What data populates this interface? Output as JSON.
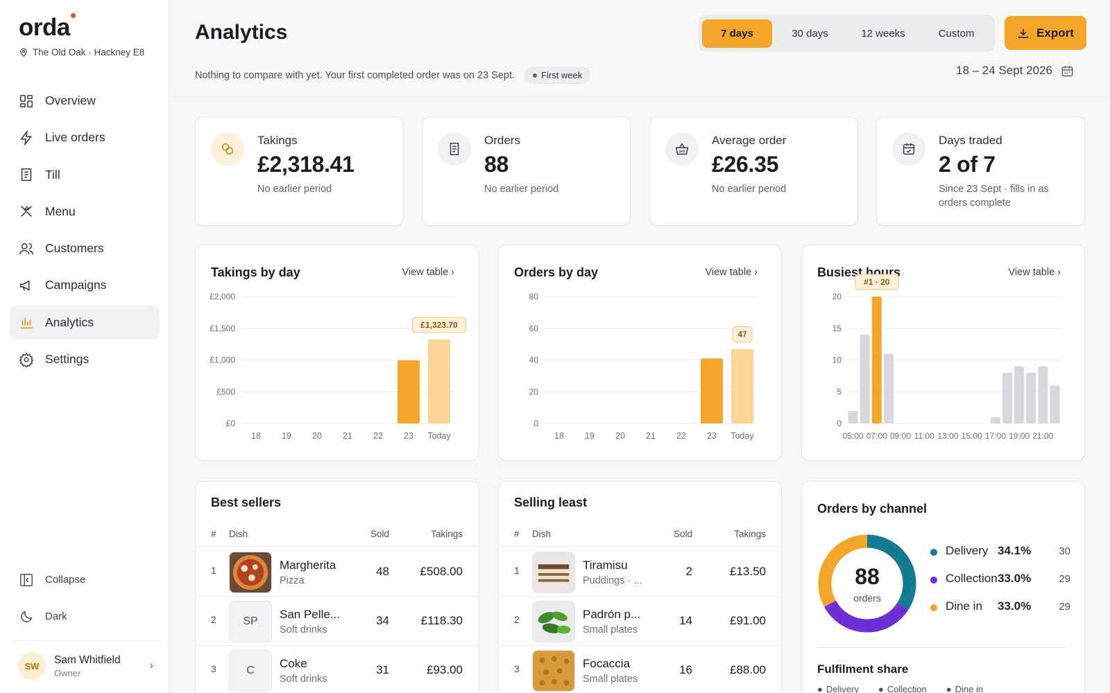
{
  "brand": {
    "name": "orda",
    "venue": "The Old Oak · Hackney E8"
  },
  "nav": [
    {
      "label": "Overview",
      "icon": "grid-icon"
    },
    {
      "label": "Live orders",
      "icon": "bolt-icon"
    },
    {
      "label": "Till",
      "icon": "receipt-icon"
    },
    {
      "label": "Menu",
      "icon": "utensils-icon"
    },
    {
      "label": "Customers",
      "icon": "users-icon"
    },
    {
      "label": "Campaigns",
      "icon": "megaphone-icon"
    },
    {
      "label": "Analytics",
      "icon": "bar-chart-icon"
    },
    {
      "label": "Settings",
      "icon": "gear-icon"
    }
  ],
  "sidebar_bottom": {
    "collapse": "Collapse",
    "dark": "Dark"
  },
  "user": {
    "initials": "SW",
    "name": "Sam Whitfield",
    "role": "Owner"
  },
  "header": {
    "title": "Analytics",
    "subtitle": "Nothing to compare with yet. Your first completed order was on 23 Sept.",
    "badge": "First week",
    "ranges": [
      "7 days",
      "30 days",
      "12 weeks",
      "Custom"
    ],
    "active_range": "7 days",
    "export": "Export",
    "date_range": "18 – 24 Sept 2026"
  },
  "kpis": [
    {
      "label": "Takings",
      "value": "£2,318.41",
      "note": "No earlier period",
      "icon": "coins-icon"
    },
    {
      "label": "Orders",
      "value": "88",
      "note": "No earlier period",
      "icon": "receipt-icon"
    },
    {
      "label": "Average order",
      "value": "£26.35",
      "note": "No earlier period",
      "icon": "basket-icon"
    },
    {
      "label": "Days traded",
      "value": "2 of 7",
      "note": "Since 23 Sept · fills in as orders complete",
      "icon": "calendar-check-icon"
    }
  ],
  "view_table": "View table ›",
  "accent": "#f4a62a",
  "chart_data": [
    {
      "type": "bar",
      "title": "Takings by day",
      "categories": [
        "18",
        "19",
        "20",
        "21",
        "22",
        "23",
        "Today"
      ],
      "values": [
        0,
        0,
        0,
        0,
        0,
        995,
        1323.7
      ],
      "ylim": [
        0,
        2000
      ],
      "yticks": [
        0,
        500,
        1000,
        1500,
        2000
      ],
      "ytick_labels": [
        "£0",
        "£500",
        "£1,000",
        "£1,500",
        "£2,000"
      ],
      "highlight_label": "£1,323.70"
    },
    {
      "type": "bar",
      "title": "Orders by day",
      "categories": [
        "18",
        "19",
        "20",
        "21",
        "22",
        "23",
        "Today"
      ],
      "values": [
        0,
        0,
        0,
        0,
        0,
        41,
        47
      ],
      "ylim": [
        0,
        80
      ],
      "yticks": [
        0,
        20,
        40,
        60,
        80
      ],
      "ytick_labels": [
        "0",
        "20",
        "40",
        "60",
        "80"
      ],
      "highlight_label": "47"
    },
    {
      "type": "bar",
      "title": "Busiest hours",
      "hours": [
        "05:00",
        "06:00",
        "07:00",
        "08:00",
        "09:00",
        "10:00",
        "11:00",
        "12:00",
        "13:00",
        "14:00",
        "15:00",
        "16:00",
        "17:00",
        "18:00",
        "19:00",
        "20:00",
        "21:00",
        "22:00"
      ],
      "values": [
        2,
        14,
        20,
        11,
        0,
        0,
        0,
        0,
        0,
        0,
        0,
        0,
        1,
        8,
        9,
        8,
        9,
        6
      ],
      "tick_labels": [
        "05:00",
        "07:00",
        "09:00",
        "11:00",
        "13:00",
        "15:00",
        "17:00",
        "19:00",
        "21:00"
      ],
      "ylim": [
        0,
        20
      ],
      "yticks": [
        0,
        5,
        10,
        15,
        20
      ],
      "ytick_labels": [
        "0",
        "5",
        "10",
        "15",
        "20"
      ],
      "highlight_label": "#1 · 20"
    },
    {
      "type": "pie",
      "title": "Orders by channel",
      "total": "88",
      "total_label": "orders",
      "slices": [
        {
          "name": "Delivery",
          "pct": "34.1%",
          "count": "30",
          "value": 30,
          "color": "#157a93"
        },
        {
          "name": "Collection",
          "pct": "33.0%",
          "count": "29",
          "value": 29,
          "color": "#6d2fd6"
        },
        {
          "name": "Dine in",
          "pct": "33.0%",
          "count": "29",
          "value": 29,
          "color": "#f4a62a"
        }
      ]
    }
  ],
  "best_sellers": {
    "title": "Best sellers",
    "headers": [
      "#",
      "Dish",
      "Sold",
      "Takings"
    ],
    "rows": [
      {
        "idx": "1",
        "name": "Margherita",
        "cat": "Pizza",
        "sold": "48",
        "takings": "£508.00",
        "thumb": ""
      },
      {
        "idx": "2",
        "name": "San Pelle...",
        "cat": "Soft drinks",
        "sold": "34",
        "takings": "£118.30",
        "thumb": "SP"
      },
      {
        "idx": "3",
        "name": "Coke",
        "cat": "Soft drinks",
        "sold": "31",
        "takings": "£93.00",
        "thumb": "C"
      }
    ]
  },
  "selling_least": {
    "title": "Selling least",
    "headers": [
      "#",
      "Dish",
      "Sold",
      "Takings"
    ],
    "rows": [
      {
        "idx": "1",
        "name": "Tiramisu",
        "cat": "Puddings · ...",
        "sold": "2",
        "takings": "£13.50",
        "thumb": ""
      },
      {
        "idx": "2",
        "name": "Padrón p...",
        "cat": "Small plates",
        "sold": "14",
        "takings": "£91.00",
        "thumb": ""
      },
      {
        "idx": "3",
        "name": "Focaccia",
        "cat": "Small plates",
        "sold": "16",
        "takings": "£88.00",
        "thumb": ""
      }
    ]
  },
  "fulfilment": {
    "title": "Fulfilment share",
    "legend": [
      "Delivery",
      "Collection",
      "Dine in"
    ]
  }
}
